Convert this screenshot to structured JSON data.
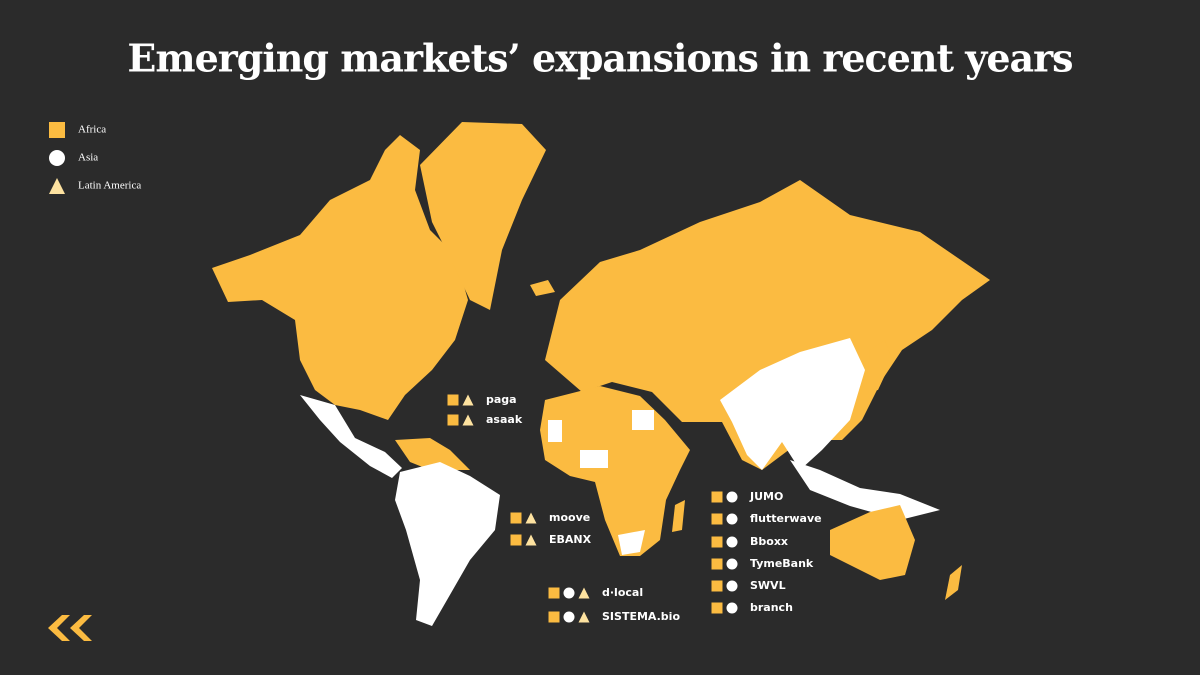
{
  "title": "Emerging markets’ expansions in recent years",
  "legend": [
    {
      "label": "Africa",
      "shape": "square",
      "color": "#fbbb41"
    },
    {
      "label": "Asia",
      "shape": "circle",
      "color": "#ffffff"
    },
    {
      "label": "Latin America",
      "shape": "triangle",
      "color": "#fde2a0"
    }
  ],
  "companies": [
    {
      "name": "paga",
      "markets": [
        0,
        2
      ]
    },
    {
      "name": "asaak",
      "markets": [
        0,
        2
      ]
    },
    {
      "name": "moove",
      "markets": [
        0,
        2
      ]
    },
    {
      "name": "EBANX",
      "markets": [
        0,
        2
      ]
    },
    {
      "name": "d·local",
      "markets": [
        0,
        1,
        2
      ]
    },
    {
      "name": "SISTEMA.bio",
      "markets": [
        0,
        1,
        2
      ]
    },
    {
      "name": "JUMO",
      "markets": [
        0,
        1
      ]
    },
    {
      "name": "flutterwave",
      "markets": [
        0,
        1
      ]
    },
    {
      "name": "Bboxx",
      "markets": [
        0,
        1
      ]
    },
    {
      "name": "TymeBank",
      "markets": [
        0,
        1
      ]
    },
    {
      "name": "SWVL",
      "markets": [
        0,
        1
      ]
    },
    {
      "name": "branch",
      "markets": [
        0,
        1
      ]
    }
  ]
}
